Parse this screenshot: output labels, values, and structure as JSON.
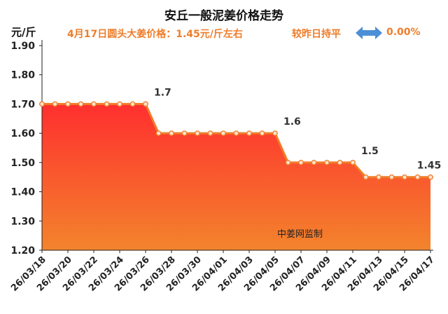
{
  "header": {
    "title": "安丘一般泥姜价格走势",
    "subtitle": "4月17日圆头大姜价格：1.45元/斤左右",
    "compare_label": "较昨日持平",
    "change_pct": "0.00%",
    "unit": "元/斤",
    "watermark": "中姜网监制"
  },
  "colors": {
    "line": "#ef7d2a",
    "fill_top": "#ff2f2f",
    "fill_bottom": "#f3842c",
    "accent_text": "#ef7d2a",
    "arrow": "#4b8fd6"
  },
  "chart_data": {
    "type": "area",
    "title": "安丘一般泥姜价格走势",
    "ylabel": "元/斤",
    "ylim": [
      1.2,
      1.9
    ],
    "yticks": [
      "1.20",
      "1.30",
      "1.40",
      "1.50",
      "1.60",
      "1.70",
      "1.80",
      "1.90"
    ],
    "x": [
      "26/03/18",
      "26/03/19",
      "26/03/20",
      "26/03/21",
      "26/03/22",
      "26/03/23",
      "26/03/24",
      "26/03/25",
      "26/03/26",
      "26/03/27",
      "26/03/28",
      "26/03/29",
      "26/03/30",
      "26/03/31",
      "26/04/01",
      "26/04/02",
      "26/04/03",
      "26/04/04",
      "26/04/05",
      "26/04/06",
      "26/04/07",
      "26/04/08",
      "26/04/09",
      "26/04/10",
      "26/04/11",
      "26/04/12",
      "26/04/13",
      "26/04/14",
      "26/04/15",
      "26/04/16",
      "26/04/17"
    ],
    "xtick_labels": [
      "26/03/18",
      "26/03/20",
      "26/03/22",
      "26/03/24",
      "26/03/26",
      "26/03/28",
      "26/03/30",
      "26/04/01",
      "26/04/03",
      "26/04/05",
      "26/04/07",
      "26/04/09",
      "26/04/11",
      "26/04/13",
      "26/04/15",
      "26/04/17"
    ],
    "values": [
      1.7,
      1.7,
      1.7,
      1.7,
      1.7,
      1.7,
      1.7,
      1.7,
      1.7,
      1.6,
      1.6,
      1.6,
      1.6,
      1.6,
      1.6,
      1.6,
      1.6,
      1.6,
      1.6,
      1.5,
      1.5,
      1.5,
      1.5,
      1.5,
      1.5,
      1.45,
      1.45,
      1.45,
      1.45,
      1.45,
      1.45
    ],
    "annotations": [
      {
        "index": 8,
        "text": "1.7"
      },
      {
        "index": 18,
        "text": "1.6"
      },
      {
        "index": 24,
        "text": "1.5"
      },
      {
        "index": 30,
        "text": "1.45"
      }
    ],
    "grid": false
  }
}
